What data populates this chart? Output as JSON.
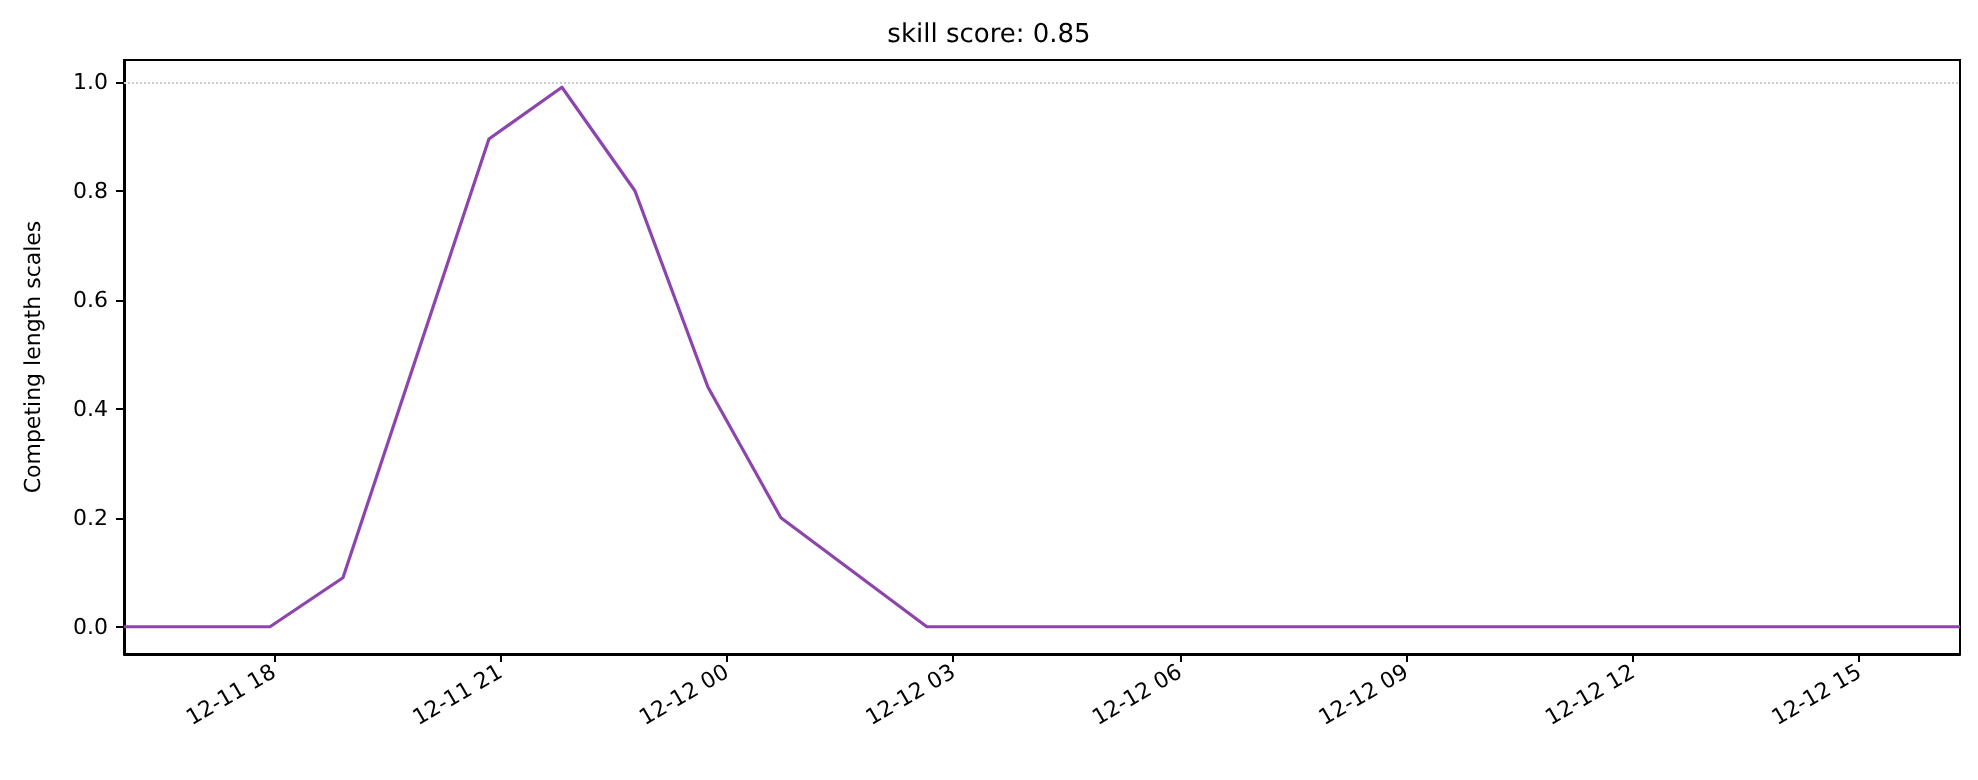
{
  "chart_data": {
    "type": "line",
    "title": "skill score: 0.85",
    "ylabel": "Competing length scales",
    "x": [
      "--12-11T16:01",
      "--12-11T17:57",
      "--12-11T18:55",
      "--12-11T20:51",
      "--12-11T21:49",
      "--12-11T22:47",
      "--12-11T23:45",
      "--12-12T00:43",
      "--12-12T02:39",
      "--12-12T16:20"
    ],
    "series": [
      {
        "color": "#8e44ad",
        "values": [
          0,
          0,
          0.09,
          0.895,
          0.99,
          0.8,
          0.44,
          0.2,
          0,
          0
        ]
      }
    ],
    "xlim": [
      "--12-11T16:01",
      "--12-12T16:20"
    ],
    "xticks": [
      {
        "value": "--12-11T18:00",
        "label": "12-11 18"
      },
      {
        "value": "--12-11T21:00",
        "label": "12-11 21"
      },
      {
        "value": "--12-12T00:00",
        "label": "12-12 00"
      },
      {
        "value": "--12-12T03:00",
        "label": "12-12 03"
      },
      {
        "value": "--12-12T06:00",
        "label": "12-12 06"
      },
      {
        "value": "--12-12T09:00",
        "label": "12-12 09"
      },
      {
        "value": "--12-12T12:00",
        "label": "12-12 12"
      },
      {
        "value": "--12-12T15:00",
        "label": "12-12 15"
      }
    ],
    "ylim": [
      -0.05,
      1.04
    ],
    "yticks": [
      {
        "value": 0,
        "label": "0.0"
      },
      {
        "value": 0.2,
        "label": "0.2"
      },
      {
        "value": 0.4,
        "label": "0.4"
      },
      {
        "value": 0.6,
        "label": "0.6"
      },
      {
        "value": 0.8,
        "label": "0.8"
      },
      {
        "value": 1,
        "label": "1.0"
      }
    ],
    "ref_lines": [
      {
        "axis": "y",
        "value": 1,
        "color": "#cccccc",
        "line_style": "dotted"
      }
    ],
    "marker": "none",
    "line_style": "solid"
  }
}
